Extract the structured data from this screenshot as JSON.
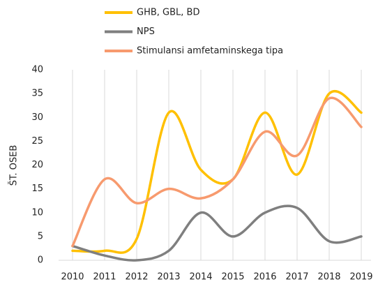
{
  "chart_data": {
    "type": "line",
    "y_label": "ŠT. OSEB",
    "categories": [
      "2010",
      "2011",
      "2012",
      "2013",
      "2014",
      "2015",
      "2016",
      "2017",
      "2018",
      "2019"
    ],
    "series": [
      {
        "name": "GHB, GBL, BD",
        "color": "#ffc000",
        "values": [
          2,
          2,
          4.5,
          31,
          19,
          17,
          31,
          18,
          35,
          31
        ]
      },
      {
        "name": "NPS",
        "color": "#7f7f7f",
        "values": [
          3,
          1,
          0,
          2,
          10,
          5,
          10,
          11,
          4,
          5
        ]
      },
      {
        "name": "Stimulansi amfetaminskega tipa",
        "color": "#f79a6e",
        "values": [
          3,
          17,
          12,
          15,
          13,
          17,
          27,
          22,
          34,
          28
        ]
      }
    ],
    "ylim": [
      0,
      40
    ],
    "yticks": [
      0,
      5,
      10,
      15,
      20,
      25,
      30,
      35,
      40
    ],
    "grid": "x",
    "smooth": true,
    "legend": "top"
  }
}
